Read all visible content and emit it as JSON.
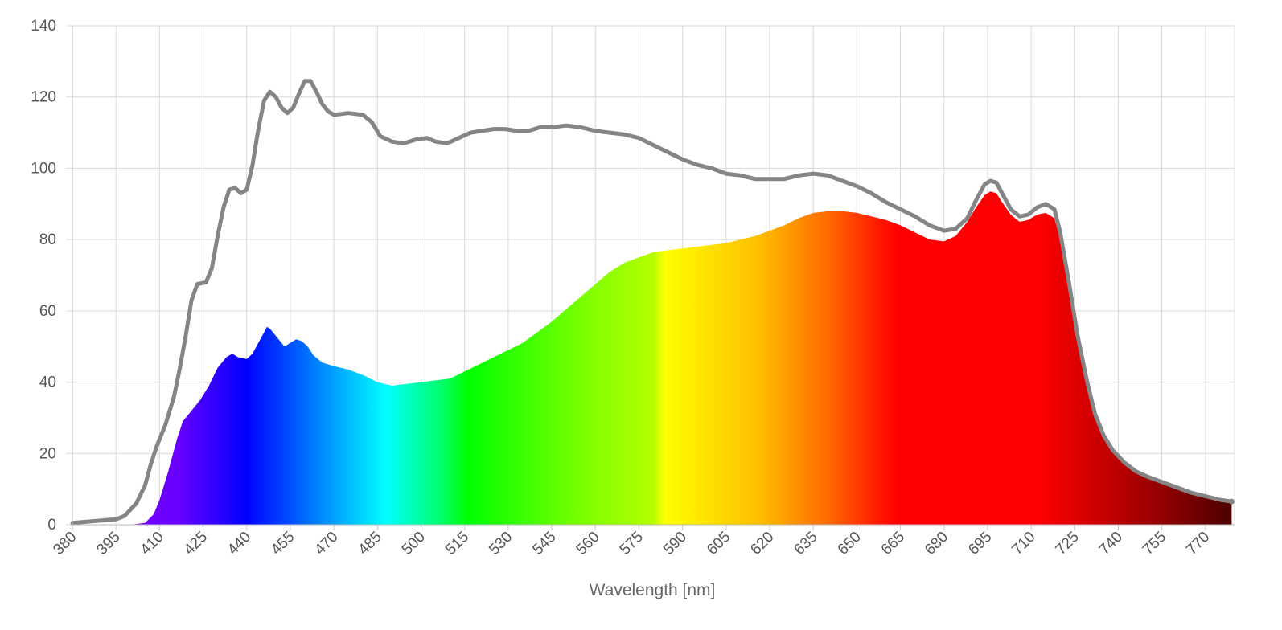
{
  "chart_data": {
    "type": "area",
    "xlabel": "Wavelength [nm]",
    "ylabel": "",
    "xlim": [
      380,
      780
    ],
    "ylim": [
      0,
      140
    ],
    "grid": true,
    "x_ticks": [
      "380",
      "395",
      "410",
      "425",
      "440",
      "455",
      "470",
      "485",
      "500",
      "515",
      "530",
      "545",
      "560",
      "575",
      "590",
      "605",
      "620",
      "635",
      "650",
      "665",
      "680",
      "695",
      "710",
      "725",
      "740",
      "755",
      "770"
    ],
    "y_ticks": [
      "0",
      "20",
      "40",
      "60",
      "80",
      "100",
      "120",
      "140"
    ],
    "series": [
      {
        "style": "area-spectrum",
        "points": [
          [
            380,
            0
          ],
          [
            395,
            0
          ],
          [
            400,
            0
          ],
          [
            405,
            0.5
          ],
          [
            408,
            3
          ],
          [
            410,
            7
          ],
          [
            413,
            15
          ],
          [
            416,
            24
          ],
          [
            418,
            29
          ],
          [
            421,
            32
          ],
          [
            424,
            35
          ],
          [
            427,
            39
          ],
          [
            430,
            44
          ],
          [
            433,
            47
          ],
          [
            435,
            48
          ],
          [
            437,
            47
          ],
          [
            440,
            46.5
          ],
          [
            442,
            48
          ],
          [
            444,
            51
          ],
          [
            446,
            54
          ],
          [
            447,
            55.5
          ],
          [
            448,
            55
          ],
          [
            450,
            53
          ],
          [
            452,
            51
          ],
          [
            453,
            50
          ],
          [
            455,
            51
          ],
          [
            457,
            52
          ],
          [
            459,
            51.5
          ],
          [
            461,
            50
          ],
          [
            463,
            47.5
          ],
          [
            466,
            45.5
          ],
          [
            470,
            44.5
          ],
          [
            475,
            43.5
          ],
          [
            480,
            42
          ],
          [
            485,
            40
          ],
          [
            490,
            39
          ],
          [
            495,
            39.5
          ],
          [
            500,
            40
          ],
          [
            505,
            40.5
          ],
          [
            510,
            41
          ],
          [
            515,
            43
          ],
          [
            520,
            45
          ],
          [
            525,
            47
          ],
          [
            530,
            49
          ],
          [
            535,
            51
          ],
          [
            540,
            54
          ],
          [
            545,
            57
          ],
          [
            550,
            60.5
          ],
          [
            555,
            64
          ],
          [
            560,
            67.5
          ],
          [
            565,
            71
          ],
          [
            570,
            73.5
          ],
          [
            575,
            75
          ],
          [
            580,
            76.5
          ],
          [
            585,
            77
          ],
          [
            590,
            77.5
          ],
          [
            595,
            78
          ],
          [
            600,
            78.5
          ],
          [
            605,
            79
          ],
          [
            610,
            80
          ],
          [
            615,
            81
          ],
          [
            620,
            82.5
          ],
          [
            625,
            84
          ],
          [
            630,
            86
          ],
          [
            635,
            87.5
          ],
          [
            640,
            88
          ],
          [
            645,
            88
          ],
          [
            650,
            87.5
          ],
          [
            655,
            86.5
          ],
          [
            660,
            85.5
          ],
          [
            665,
            84
          ],
          [
            670,
            82
          ],
          [
            675,
            80
          ],
          [
            680,
            79.5
          ],
          [
            684,
            81
          ],
          [
            688,
            85
          ],
          [
            691,
            89
          ],
          [
            694,
            92.5
          ],
          [
            696,
            93.5
          ],
          [
            698,
            93
          ],
          [
            700,
            90.5
          ],
          [
            703,
            87
          ],
          [
            706,
            85
          ],
          [
            709,
            85.5
          ],
          [
            712,
            87
          ],
          [
            715,
            87.5
          ],
          [
            718,
            86
          ],
          [
            720,
            80
          ],
          [
            723,
            68
          ],
          [
            726,
            53
          ],
          [
            729,
            41
          ],
          [
            732,
            31
          ],
          [
            735,
            25
          ],
          [
            738,
            21
          ],
          [
            742,
            17.5
          ],
          [
            746,
            15
          ],
          [
            750,
            13.5
          ],
          [
            755,
            12
          ],
          [
            760,
            10.5
          ],
          [
            765,
            9
          ],
          [
            770,
            8
          ],
          [
            775,
            7
          ],
          [
            779,
            6.5
          ]
        ]
      },
      {
        "style": "line",
        "color": "#858585",
        "points": [
          [
            380,
            0.5
          ],
          [
            387,
            1
          ],
          [
            395,
            1.5
          ],
          [
            398,
            2.5
          ],
          [
            402,
            6
          ],
          [
            405,
            11
          ],
          [
            407,
            17
          ],
          [
            409,
            22
          ],
          [
            412,
            28
          ],
          [
            415,
            36
          ],
          [
            417,
            44
          ],
          [
            419,
            53
          ],
          [
            421,
            63
          ],
          [
            423,
            67.5
          ],
          [
            426,
            68
          ],
          [
            428,
            72
          ],
          [
            430,
            81
          ],
          [
            432,
            89
          ],
          [
            434,
            94
          ],
          [
            436,
            94.5
          ],
          [
            438,
            93
          ],
          [
            440,
            94
          ],
          [
            442,
            101
          ],
          [
            444,
            111
          ],
          [
            446,
            119
          ],
          [
            448,
            121.5
          ],
          [
            450,
            120
          ],
          [
            452,
            117
          ],
          [
            454,
            115.5
          ],
          [
            456,
            117
          ],
          [
            458,
            121
          ],
          [
            460,
            124.5
          ],
          [
            462,
            124.5
          ],
          [
            464,
            121.5
          ],
          [
            466,
            118
          ],
          [
            468,
            116
          ],
          [
            470,
            115
          ],
          [
            475,
            115.5
          ],
          [
            480,
            115
          ],
          [
            483,
            113
          ],
          [
            486,
            109
          ],
          [
            490,
            107.5
          ],
          [
            494,
            107
          ],
          [
            498,
            108
          ],
          [
            502,
            108.5
          ],
          [
            505,
            107.5
          ],
          [
            509,
            107
          ],
          [
            513,
            108.5
          ],
          [
            517,
            110
          ],
          [
            521,
            110.5
          ],
          [
            525,
            111
          ],
          [
            529,
            111
          ],
          [
            533,
            110.5
          ],
          [
            537,
            110.5
          ],
          [
            541,
            111.5
          ],
          [
            545,
            111.5
          ],
          [
            550,
            112
          ],
          [
            555,
            111.5
          ],
          [
            560,
            110.5
          ],
          [
            565,
            110
          ],
          [
            570,
            109.5
          ],
          [
            575,
            108.5
          ],
          [
            580,
            106.5
          ],
          [
            585,
            104.5
          ],
          [
            590,
            102.5
          ],
          [
            595,
            101
          ],
          [
            600,
            100
          ],
          [
            605,
            98.5
          ],
          [
            610,
            98
          ],
          [
            615,
            97
          ],
          [
            620,
            97
          ],
          [
            625,
            97
          ],
          [
            630,
            98
          ],
          [
            635,
            98.5
          ],
          [
            640,
            98
          ],
          [
            645,
            96.5
          ],
          [
            650,
            95
          ],
          [
            655,
            93
          ],
          [
            660,
            90.5
          ],
          [
            665,
            88.5
          ],
          [
            670,
            86.5
          ],
          [
            675,
            84
          ],
          [
            680,
            82.5
          ],
          [
            684,
            83
          ],
          [
            688,
            86
          ],
          [
            691,
            91
          ],
          [
            694,
            95.5
          ],
          [
            696,
            96.5
          ],
          [
            698,
            96
          ],
          [
            700,
            93
          ],
          [
            703,
            88.5
          ],
          [
            706,
            86.5
          ],
          [
            709,
            87
          ],
          [
            712,
            89
          ],
          [
            715,
            90
          ],
          [
            718,
            88.5
          ],
          [
            720,
            82
          ],
          [
            723,
            68
          ],
          [
            726,
            53
          ],
          [
            729,
            41
          ],
          [
            732,
            31
          ],
          [
            735,
            25
          ],
          [
            738,
            21
          ],
          [
            742,
            17.5
          ],
          [
            746,
            15
          ],
          [
            750,
            13.5
          ],
          [
            755,
            12
          ],
          [
            760,
            10.5
          ],
          [
            765,
            9
          ],
          [
            770,
            8
          ],
          [
            775,
            7
          ],
          [
            779,
            6.5
          ]
        ]
      }
    ]
  }
}
